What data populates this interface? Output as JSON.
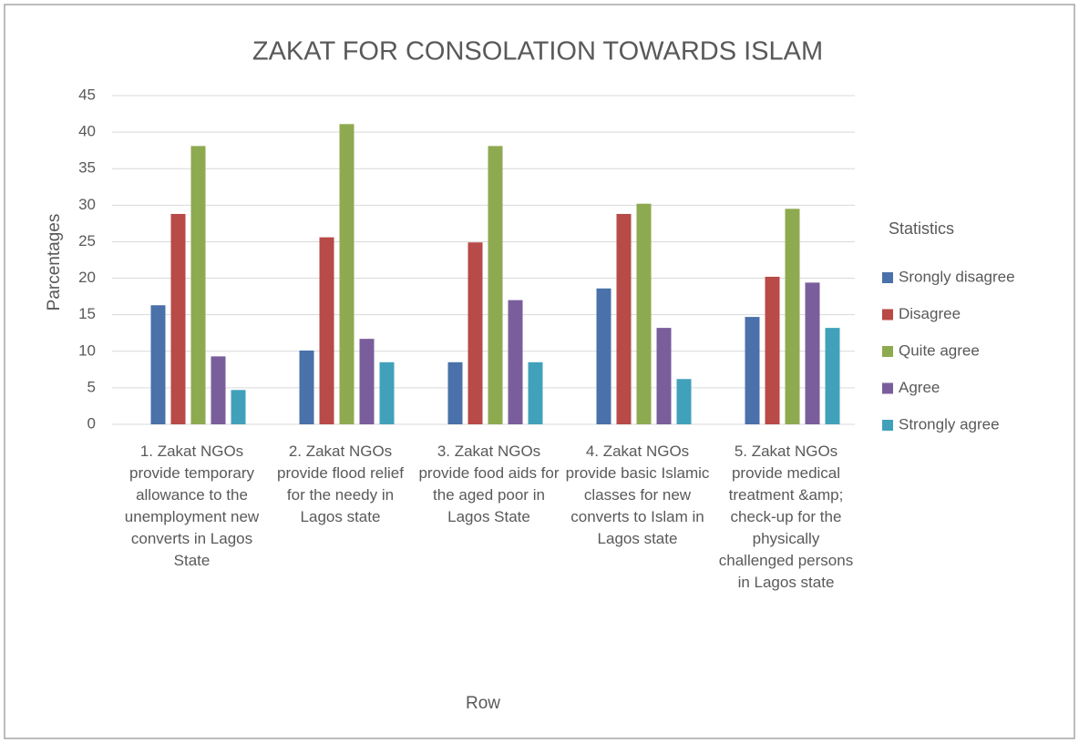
{
  "chart_data": {
    "type": "bar",
    "title": "ZAKAT FOR CONSOLATION TOWARDS ISLAM",
    "x_label": "Row",
    "y_label": "Parcentages",
    "legend_title": "Statistics",
    "legend": "right",
    "grid": true,
    "categories": [
      "1. Zakat NGOs provide temporary allowance to the unemployment new converts in Lagos State",
      "2. Zakat NGOs provide flood relief for the needy in Lagos state",
      "3. Zakat NGOs provide food aids for the aged poor in Lagos State",
      "4. Zakat NGOs provide basic Islamic classes for new converts to Islam in Lagos state",
      "5. Zakat NGOs provide medical treatment &amp; check-up for the physically challenged persons in Lagos state"
    ],
    "series": [
      {
        "name": "Srongly disagree",
        "color": "#4a71a9",
        "values": [
          16.3,
          10.1,
          8.5,
          18.6,
          14.7
        ]
      },
      {
        "name": "Disagree",
        "color": "#b84a47",
        "values": [
          28.8,
          25.6,
          24.9,
          28.8,
          20.2
        ]
      },
      {
        "name": "Quite agree",
        "color": "#8eaa50",
        "values": [
          38.1,
          41.1,
          38.1,
          30.2,
          29.5
        ]
      },
      {
        "name": "Agree",
        "color": "#7a5e9b",
        "values": [
          9.3,
          11.7,
          17.0,
          13.2,
          19.4
        ]
      },
      {
        "name": "Strongly agree",
        "color": "#41a1bb",
        "values": [
          4.7,
          8.5,
          8.5,
          6.2,
          13.2
        ]
      }
    ],
    "ylim": [
      0,
      45
    ],
    "yticks": [
      0,
      5,
      10,
      15,
      20,
      25,
      30,
      35,
      40,
      45
    ]
  }
}
